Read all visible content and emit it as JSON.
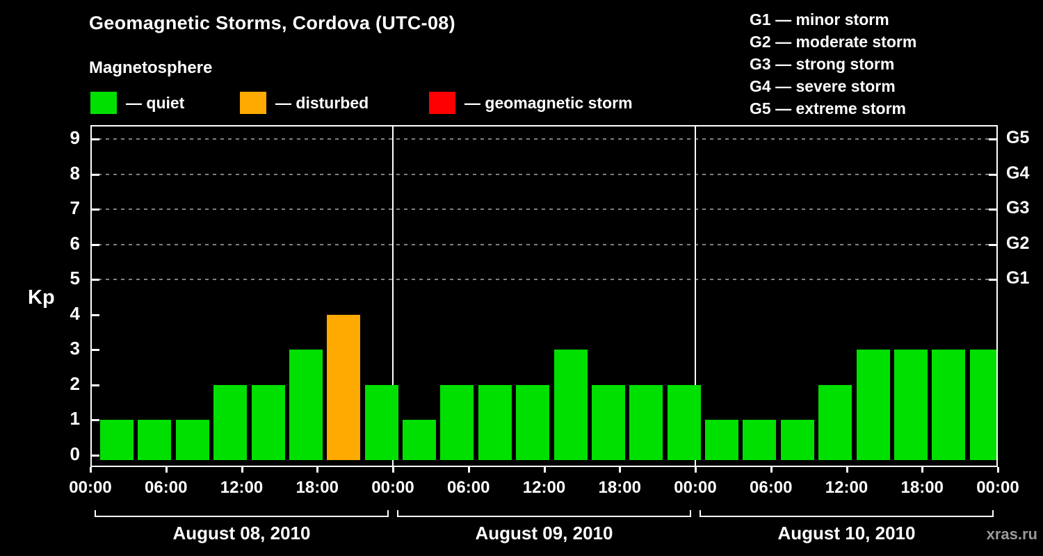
{
  "subtitle": "Magnetosphere",
  "watermark": "xras.ru",
  "legend": {
    "items": [
      {
        "name": "quiet",
        "label": "— quiet",
        "color": "#00e000"
      },
      {
        "name": "disturbed",
        "label": "— disturbed",
        "color": "#ffaa00"
      },
      {
        "name": "storm",
        "label": "— geomagnetic storm",
        "color": "#ff0000"
      }
    ]
  },
  "storm_scale": [
    {
      "label": "G1 — minor storm"
    },
    {
      "label": "G2 — moderate storm"
    },
    {
      "label": "G3 — strong storm"
    },
    {
      "label": "G4 — severe storm"
    },
    {
      "label": "G5 — extreme storm"
    }
  ],
  "chart_data": {
    "type": "bar",
    "title": "Geomagnetic Storms, Cordova (UTC-08)",
    "ylabel": "Kp",
    "ylim": [
      0,
      9
    ],
    "yticks": [
      0,
      1,
      2,
      3,
      4,
      5,
      6,
      7,
      8,
      9
    ],
    "grid": true,
    "gridlines_kp": [
      5,
      6,
      7,
      8,
      9
    ],
    "legend_position": "top",
    "bar_interval_hours": 3,
    "x_tick_labels": [
      "00:00",
      "06:00",
      "12:00",
      "18:00",
      "00:00",
      "06:00",
      "12:00",
      "18:00",
      "00:00",
      "06:00",
      "12:00",
      "18:00",
      "00:00"
    ],
    "days": [
      {
        "date": "August 08, 2010",
        "values": [
          1,
          1,
          1,
          2,
          2,
          3,
          4,
          2
        ]
      },
      {
        "date": "August 09, 2010",
        "values": [
          1,
          2,
          2,
          2,
          3,
          2,
          2,
          2
        ]
      },
      {
        "date": "August 10, 2010",
        "values": [
          1,
          1,
          1,
          2,
          3,
          3,
          3,
          3
        ]
      }
    ],
    "thresholds": {
      "disturbed_min_kp": 4,
      "storm_min_kp": 5
    },
    "colors": {
      "quiet": "#00e000",
      "disturbed": "#ffaa00",
      "storm": "#ff0000",
      "grid": "#808080",
      "axis": "#ffffff",
      "background": "#000000"
    },
    "right_axis": [
      {
        "label": "G1",
        "kp": 5
      },
      {
        "label": "G2",
        "kp": 6
      },
      {
        "label": "G3",
        "kp": 7
      },
      {
        "label": "G4",
        "kp": 8
      },
      {
        "label": "G5",
        "kp": 9
      }
    ]
  }
}
